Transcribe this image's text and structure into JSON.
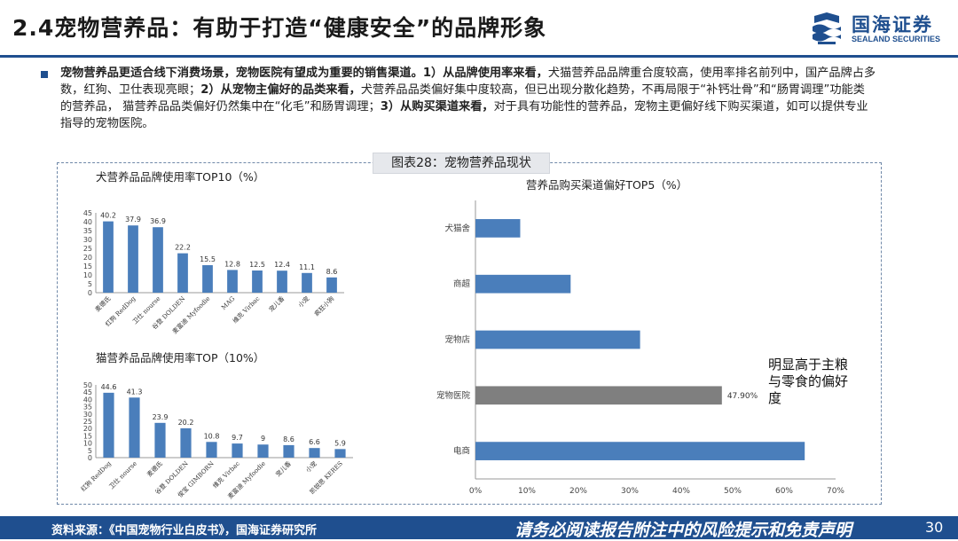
{
  "header": {
    "title": "2.4宠物营养品：有助于打造“健康安全”的品牌形象",
    "logo_name": "国海证券",
    "logo_sub": "SEALAND SECURITIES",
    "brand_color": "#1f4f8f"
  },
  "summary": {
    "b1": "宠物营养品更适合线下消费场景，宠物医院有望成为重要的销售渠道。",
    "b2": "1）从品牌使用率来看，",
    "t1": "犬猫营养品品牌重合度较高，使用率排名前列中，国产品牌占多数，红狗、卫仕表现亮眼；",
    "b3": "2）从宠物主偏好的品类来看，",
    "t2": "犬营养品品类偏好集中度较高，但已出现分散化趋势，不再局限于“补钙壮骨”和“肠胃调理”功能类的营养品， 猫营养品品类偏好仍然集中在“化毛”和肠胃调理；",
    "b4": "3）从购买渠道来看，",
    "t3": "对于具有功能性的营养品，宠物主更偏好线下购买渠道，如可以提供专业指导的宠物医院。"
  },
  "figure_tag": "图表28：宠物营养品现状",
  "annotation": "明显高于主粮与零食的偏好度",
  "footer": {
    "source": "资料来源：《中国宠物行业白皮书》，国海证券研究所",
    "disclaimer": "请务必阅读报告附注中的风险提示和免责声明",
    "page": "30"
  },
  "chart_data": [
    {
      "type": "bar",
      "title": "犬营养品品牌使用率TOP10（%）",
      "categories": [
        "麦德氏",
        "红狗 RedDog",
        "卫仕 nourse",
        "谷登 DOLDEN",
        "麦富迪 Myfoodie",
        "MAG",
        "维克 Virbac",
        "宠儿香",
        "小宠",
        "疯狂小狗"
      ],
      "values": [
        40.2,
        37.9,
        36.9,
        22.2,
        15.5,
        12.8,
        12.5,
        12.4,
        11.1,
        8.6
      ],
      "yticks": [
        "0",
        "5",
        "10",
        "15",
        "20",
        "25",
        "30",
        "35",
        "40",
        "45"
      ],
      "ylim": [
        0,
        45
      ],
      "color": "#4a7ebb"
    },
    {
      "type": "bar",
      "title": "猫营养品品牌使用率TOP（10%）",
      "categories": [
        "红狗 RedDog",
        "卫仕 nourse",
        "麦德氏",
        "谷登 DOLDEN",
        "俊宝 GIMBORN",
        "维克 Virbac",
        "麦富迪 Myfoodie",
        "宠儿香",
        "小宠",
        "凯锐思 KERES"
      ],
      "values": [
        44.6,
        41.3,
        23.9,
        20.2,
        10.8,
        9.7,
        9,
        8.6,
        6.6,
        5.9
      ],
      "yticks": [
        "0",
        "5",
        "10",
        "15",
        "20",
        "25",
        "30",
        "35",
        "40",
        "45",
        "50"
      ],
      "ylim": [
        0,
        50
      ],
      "color": "#4a7ebb"
    },
    {
      "type": "bar",
      "orientation": "horizontal",
      "title": "营养品购买渠道偏好TOP5（%）",
      "categories": [
        "犬猫舍",
        "商超",
        "宠物店",
        "宠物医院",
        "电商"
      ],
      "values": [
        8.7,
        18.5,
        32,
        47.9,
        64
      ],
      "highlight_label": "47.90%",
      "xticks": [
        "0%",
        "10%",
        "20%",
        "30%",
        "40%",
        "50%",
        "60%",
        "70%"
      ],
      "xlim": [
        0,
        70
      ],
      "color": "#4a7ebb",
      "highlight_color": "#7f7f7f"
    }
  ]
}
